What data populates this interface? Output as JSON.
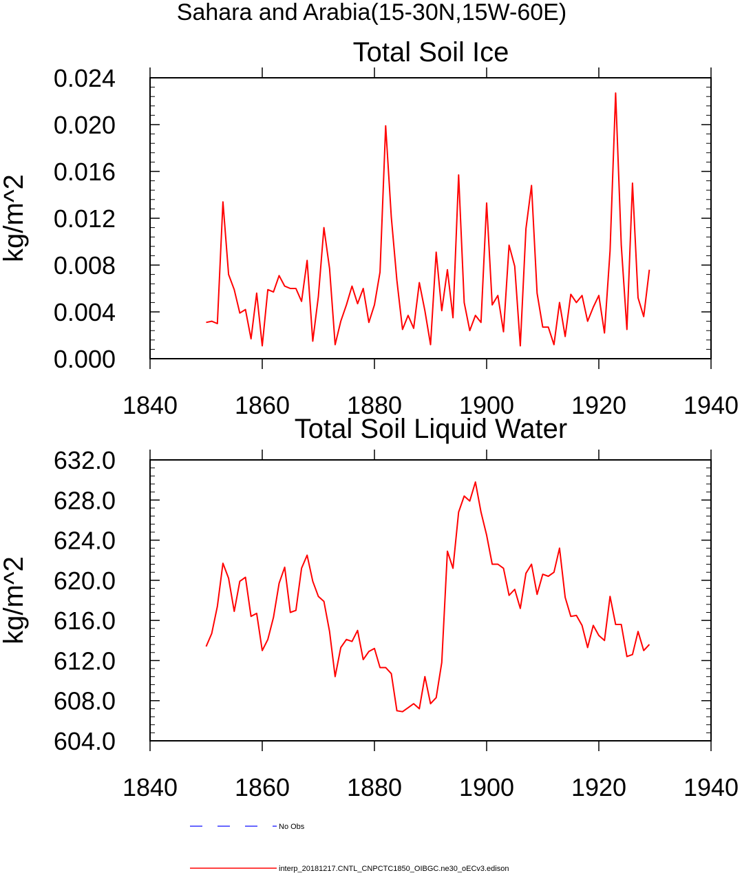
{
  "figure_title": "Sahara and Arabia(15-30N,15W-60E)",
  "legend": {
    "entries": [
      {
        "label": "No Obs",
        "color": "#3333ff",
        "style": "dashed"
      },
      {
        "label": "interp_20181217.CNTL_CNPCTC1850_OIBGC.ne30_oECv3.edison",
        "color": "#ff0000",
        "style": "solid"
      }
    ]
  },
  "chart_data": [
    {
      "type": "line",
      "title": "Total Soil Ice",
      "xlabel": "",
      "ylabel": "kg/m^2",
      "xlim": [
        1840,
        1940
      ],
      "ylim": [
        0.0,
        0.024
      ],
      "x_ticks": [
        1840,
        1860,
        1880,
        1900,
        1920,
        1940
      ],
      "x_tick_labels": [
        "1840",
        "1860",
        "1880",
        "1900",
        "1920",
        "1940"
      ],
      "y_ticks": [
        0.0,
        0.004,
        0.008,
        0.012,
        0.016,
        0.02,
        0.024
      ],
      "y_tick_labels": [
        "0.000",
        "0.004",
        "0.008",
        "0.012",
        "0.016",
        "0.020",
        "0.024"
      ],
      "grid": false,
      "series": [
        {
          "name": "interp_20181217.CNTL_CNPCTC1850_OIBGC.ne30_oECv3.edison",
          "color": "#ff0000",
          "x": [
            1850,
            1851,
            1852,
            1853,
            1854,
            1855,
            1856,
            1857,
            1858,
            1859,
            1860,
            1861,
            1862,
            1863,
            1864,
            1865,
            1866,
            1867,
            1868,
            1869,
            1870,
            1871,
            1872,
            1873,
            1874,
            1875,
            1876,
            1877,
            1878,
            1879,
            1880,
            1881,
            1882,
            1883,
            1884,
            1885,
            1886,
            1887,
            1888,
            1889,
            1890,
            1891,
            1892,
            1893,
            1894,
            1895,
            1896,
            1897,
            1898,
            1899,
            1900,
            1901,
            1902,
            1903,
            1904,
            1905,
            1906,
            1907,
            1908,
            1909,
            1910,
            1911,
            1912,
            1913,
            1914,
            1915,
            1916,
            1917,
            1918,
            1919,
            1920,
            1921,
            1922,
            1923,
            1924,
            1925,
            1926,
            1927,
            1928,
            1929
          ],
          "values": [
            0.0031,
            0.0032,
            0.003,
            0.0134,
            0.0072,
            0.0059,
            0.0039,
            0.0042,
            0.0017,
            0.0056,
            0.0011,
            0.0059,
            0.0057,
            0.0071,
            0.0062,
            0.006,
            0.006,
            0.0049,
            0.0084,
            0.0015,
            0.0053,
            0.0112,
            0.0077,
            0.0012,
            0.0032,
            0.0046,
            0.0062,
            0.0047,
            0.006,
            0.0031,
            0.0046,
            0.0074,
            0.0199,
            0.0121,
            0.0067,
            0.0025,
            0.0037,
            0.0026,
            0.0065,
            0.0041,
            0.0012,
            0.0091,
            0.0041,
            0.0076,
            0.0035,
            0.0157,
            0.0048,
            0.0024,
            0.0037,
            0.0031,
            0.0133,
            0.0046,
            0.0054,
            0.0023,
            0.0097,
            0.0079,
            0.0011,
            0.0111,
            0.0148,
            0.0056,
            0.0027,
            0.0027,
            0.0012,
            0.0048,
            0.0019,
            0.0055,
            0.0048,
            0.0054,
            0.0032,
            0.0044,
            0.0054,
            0.0022,
            0.0092,
            0.0227,
            0.0097,
            0.0025,
            0.015,
            0.0052,
            0.0036,
            0.0076
          ]
        }
      ]
    },
    {
      "type": "line",
      "title": "Total Soil Liquid Water",
      "xlabel": "",
      "ylabel": "kg/m^2",
      "xlim": [
        1840,
        1940
      ],
      "ylim": [
        604.0,
        632.0
      ],
      "x_ticks": [
        1840,
        1860,
        1880,
        1900,
        1920,
        1940
      ],
      "x_tick_labels": [
        "1840",
        "1860",
        "1880",
        "1900",
        "1920",
        "1940"
      ],
      "y_ticks": [
        604.0,
        608.0,
        612.0,
        616.0,
        620.0,
        624.0,
        628.0,
        632.0
      ],
      "y_tick_labels": [
        "604.0",
        "608.0",
        "612.0",
        "616.0",
        "620.0",
        "624.0",
        "628.0",
        "632.0"
      ],
      "grid": false,
      "series": [
        {
          "name": "interp_20181217.CNTL_CNPCTC1850_OIBGC.ne30_oECv3.edison",
          "color": "#ff0000",
          "x": [
            1850,
            1851,
            1852,
            1853,
            1854,
            1855,
            1856,
            1857,
            1858,
            1859,
            1860,
            1861,
            1862,
            1863,
            1864,
            1865,
            1866,
            1867,
            1868,
            1869,
            1870,
            1871,
            1872,
            1873,
            1874,
            1875,
            1876,
            1877,
            1878,
            1879,
            1880,
            1881,
            1882,
            1883,
            1884,
            1885,
            1886,
            1887,
            1888,
            1889,
            1890,
            1891,
            1892,
            1893,
            1894,
            1895,
            1896,
            1897,
            1898,
            1899,
            1900,
            1901,
            1902,
            1903,
            1904,
            1905,
            1906,
            1907,
            1908,
            1909,
            1910,
            1911,
            1912,
            1913,
            1914,
            1915,
            1916,
            1917,
            1918,
            1919,
            1920,
            1921,
            1922,
            1923,
            1924,
            1925,
            1926,
            1927,
            1928,
            1929
          ],
          "values": [
            613.4,
            614.7,
            617.4,
            621.7,
            620.2,
            616.9,
            619.9,
            620.3,
            616.4,
            616.7,
            613.0,
            614.1,
            616.3,
            619.7,
            621.3,
            616.8,
            617.0,
            621.2,
            622.5,
            619.9,
            618.4,
            617.9,
            614.9,
            610.4,
            613.3,
            614.1,
            613.9,
            615.0,
            612.1,
            612.9,
            613.2,
            611.3,
            611.3,
            610.7,
            607.0,
            606.9,
            607.3,
            607.7,
            607.2,
            610.4,
            607.7,
            608.3,
            611.8,
            622.9,
            621.2,
            626.8,
            628.4,
            627.9,
            629.8,
            626.8,
            624.5,
            621.6,
            621.6,
            621.2,
            618.5,
            619.1,
            617.2,
            620.7,
            621.6,
            618.6,
            620.6,
            620.4,
            620.8,
            623.2,
            618.3,
            616.4,
            616.5,
            615.5,
            613.3,
            615.5,
            614.5,
            614.0,
            618.4,
            615.6,
            615.6,
            612.4,
            612.6,
            614.9,
            613.0,
            613.6
          ]
        }
      ]
    }
  ]
}
